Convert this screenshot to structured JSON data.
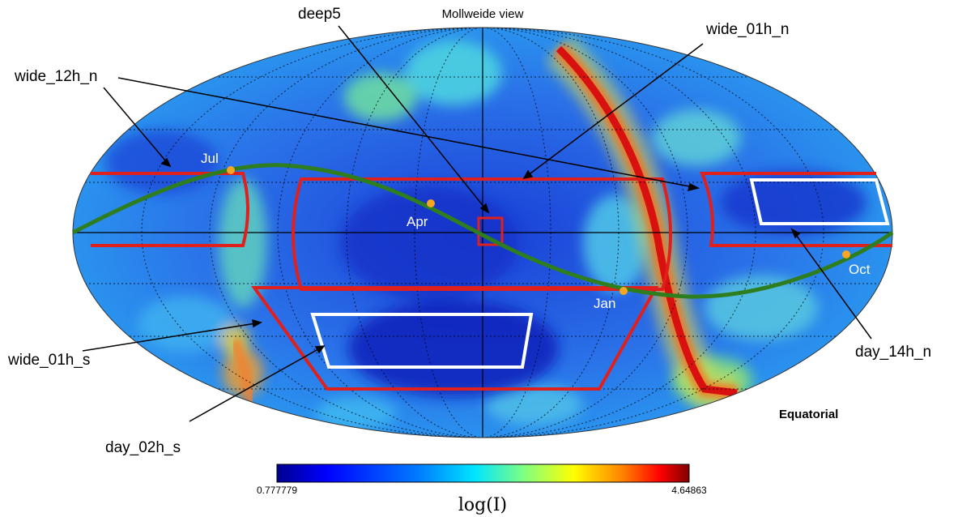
{
  "title": "Mollweide view",
  "coordinate_system": "Equatorial",
  "colorbar": {
    "min_label": "0.777779",
    "max_label": "4.64863",
    "unit_label": "log(I)",
    "colors": [
      "#00008f",
      "#0000ff",
      "#0080ff",
      "#00e5ff",
      "#80ff80",
      "#ffff00",
      "#ff8000",
      "#ff0000",
      "#800000"
    ]
  },
  "colors": {
    "map_low": "#1a3fd6",
    "map_mid": "#2a9cf0",
    "wide_field": "#e0201c",
    "day_field": "#ffffff",
    "ecliptic": "#2e7d1f",
    "month_marker": "#f5a623"
  },
  "fields": [
    {
      "name": "wide_12h_n",
      "type": "wide"
    },
    {
      "name": "deep5",
      "type": "deep"
    },
    {
      "name": "wide_01h_n",
      "type": "wide"
    },
    {
      "name": "wide_01h_s",
      "type": "wide"
    },
    {
      "name": "day_02h_s",
      "type": "day"
    },
    {
      "name": "day_14h_n",
      "type": "day"
    }
  ],
  "months": [
    {
      "name": "Jul"
    },
    {
      "name": "Apr"
    },
    {
      "name": "Jan"
    },
    {
      "name": "Oct"
    }
  ]
}
